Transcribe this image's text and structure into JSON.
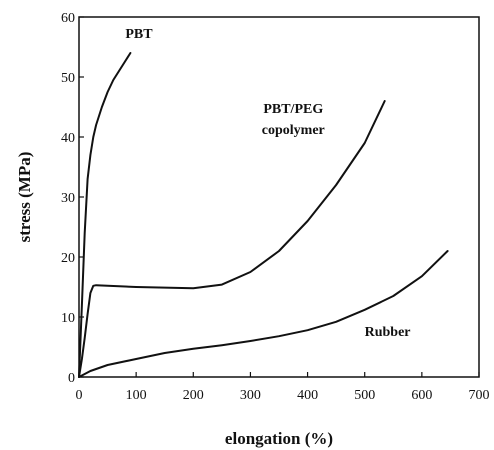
{
  "chart_data": {
    "type": "line",
    "xlabel": "elongation (%)",
    "ylabel": "stress (MPa)",
    "xlim": [
      0,
      700
    ],
    "ylim": [
      0,
      60
    ],
    "x_ticks": [
      0,
      100,
      200,
      300,
      400,
      500,
      600,
      700
    ],
    "y_ticks": [
      0,
      10,
      20,
      30,
      40,
      50,
      60
    ],
    "grid": false,
    "legend": "none",
    "series": [
      {
        "name": "PBT",
        "x": [
          0,
          5,
          10,
          15,
          20,
          25,
          30,
          40,
          50,
          60,
          70,
          80,
          90
        ],
        "y": [
          0,
          12,
          24,
          33,
          37,
          40,
          42,
          45,
          47.5,
          49.5,
          51,
          52.5,
          54
        ]
      },
      {
        "name": "PBT/PEG copolymer",
        "x": [
          0,
          5,
          10,
          15,
          20,
          25,
          30,
          50,
          100,
          150,
          200,
          250,
          300,
          350,
          400,
          450,
          500,
          535
        ],
        "y": [
          0,
          3,
          6.5,
          10.5,
          14,
          15.2,
          15.3,
          15.2,
          15,
          14.9,
          14.8,
          15.4,
          17.5,
          21,
          26,
          32,
          39,
          46
        ]
      },
      {
        "name": "Rubber",
        "x": [
          0,
          20,
          50,
          100,
          150,
          200,
          250,
          300,
          350,
          400,
          450,
          500,
          550,
          600,
          645
        ],
        "y": [
          0,
          1,
          2,
          3,
          4,
          4.7,
          5.3,
          6,
          6.8,
          7.8,
          9.2,
          11.2,
          13.5,
          16.8,
          21
        ]
      }
    ],
    "annotations": [
      {
        "text": "PBT",
        "x": 105,
        "y": 56.5
      },
      {
        "text": "PBT/PEG",
        "x": 375,
        "y": 44
      },
      {
        "text": "copolymer",
        "x": 375,
        "y": 40.5
      },
      {
        "text": "Rubber",
        "x": 540,
        "y": 6.8
      }
    ]
  }
}
